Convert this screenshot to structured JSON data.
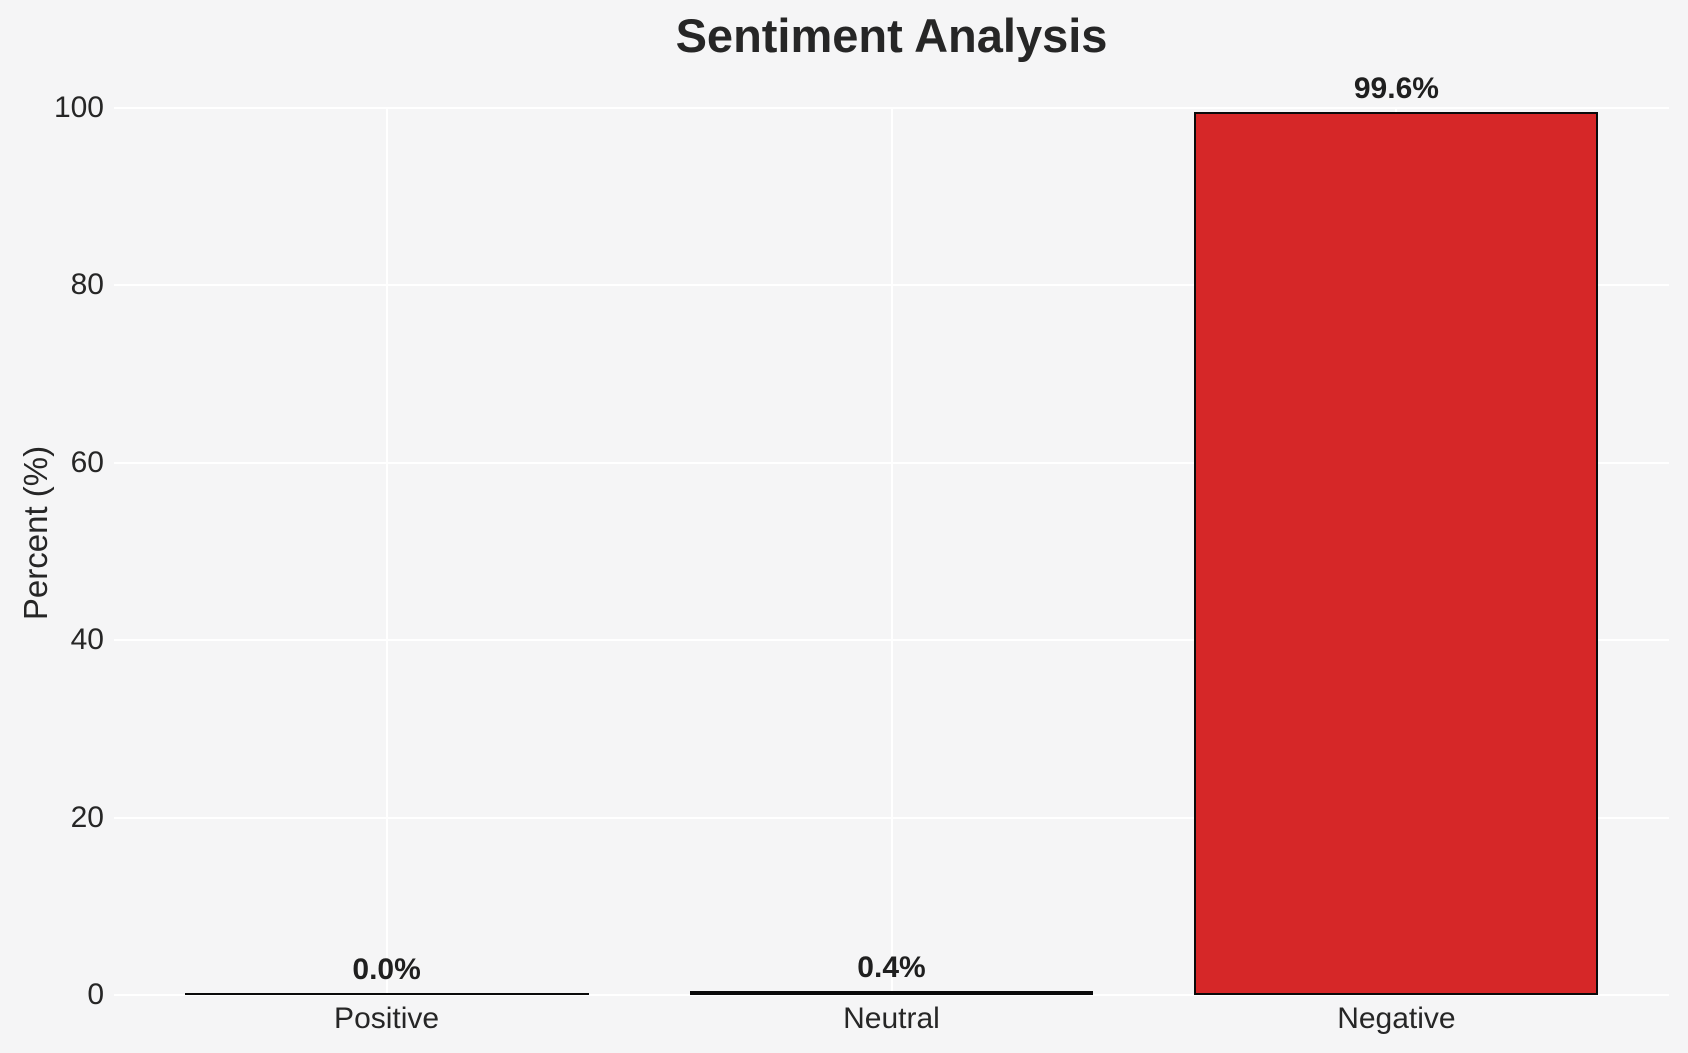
{
  "chart_data": {
    "type": "bar",
    "title": "Sentiment Analysis",
    "ylabel": "Percent (%)",
    "xlabel": "",
    "categories": [
      "Positive",
      "Neutral",
      "Negative"
    ],
    "values": [
      0.0,
      0.4,
      99.6
    ],
    "bar_value_labels": [
      "0.0%",
      "0.4%",
      "99.6%"
    ],
    "bar_colors": [
      "#0a0a0a",
      "#0a0a0a",
      "#d62728"
    ],
    "bar_edge_color": "#0a0a0a",
    "ylim": [
      0,
      100
    ],
    "yticks": [
      0,
      20,
      40,
      60,
      80,
      100
    ],
    "ytick_labels": [
      "0",
      "20",
      "40",
      "60",
      "80",
      "100"
    ],
    "grid": true,
    "gridline_color": "#ffffff",
    "background_color": "#f5f5f6",
    "legend": "none"
  }
}
